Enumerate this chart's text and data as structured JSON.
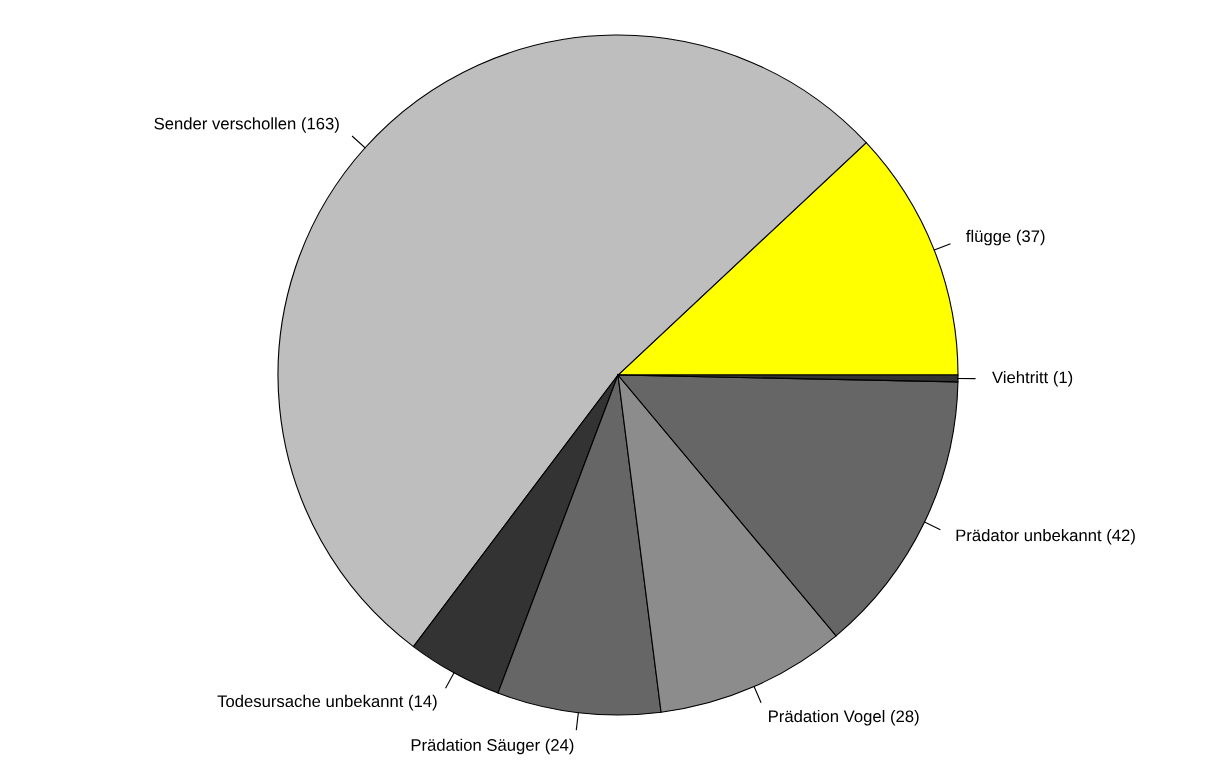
{
  "chart_data": {
    "type": "pie",
    "categories": [
      "flügge (37)",
      "Sender verschollen (163)",
      "Todesursache unbekannt (14)",
      "Prädation Säuger (24)",
      "Prädation Vogel (28)",
      "Prädator unbekannt (42)",
      "Viehtritt (1)"
    ],
    "values": [
      37,
      163,
      14,
      24,
      28,
      42,
      1
    ],
    "colors": [
      "#ffff00",
      "#bebebe",
      "#333333",
      "#666666",
      "#8c8c8c",
      "#666666",
      "#333333"
    ],
    "legend": false
  }
}
